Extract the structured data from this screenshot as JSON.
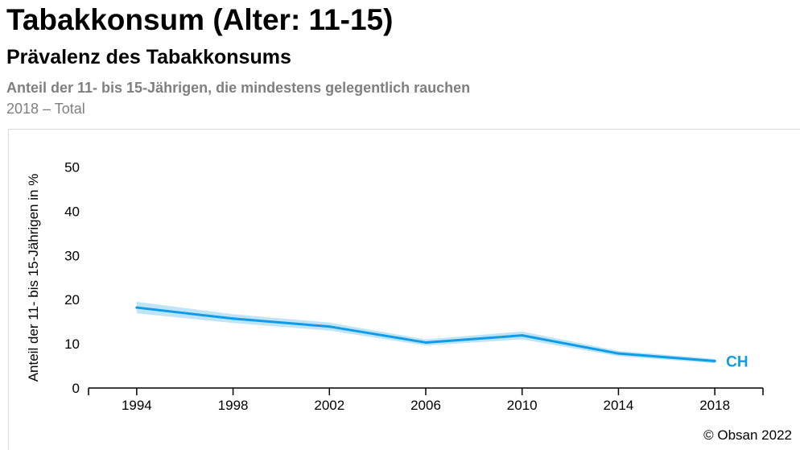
{
  "header": {
    "title": "Tabakkonsum (Alter: 11-15)",
    "subtitle": "Prävalenz des Tabakkonsums",
    "description": "Anteil der 11- bis 15-Jährigen, die mindestens gelegentlich rauchen",
    "meta": "2018 – Total"
  },
  "footer": {
    "copyright": "© Obsan 2022"
  },
  "colors": {
    "line": "#0f9ce6",
    "band": "#bfe4f7",
    "axis": "#000000"
  },
  "chart_data": {
    "type": "line",
    "title": "",
    "xlabel": "",
    "ylabel": "Anteil der 11- bis 15-Jährigen in %",
    "x": [
      1994,
      1998,
      2002,
      2006,
      2010,
      2014,
      2018
    ],
    "xlim": [
      1992,
      2020
    ],
    "ylim": [
      0,
      55
    ],
    "yticks": [
      0,
      10,
      20,
      30,
      40,
      50
    ],
    "xticks": [
      1994,
      1998,
      2002,
      2006,
      2010,
      2014,
      2018
    ],
    "grid": false,
    "series": [
      {
        "name": "CH",
        "values": [
          18.2,
          15.7,
          13.9,
          10.3,
          11.9,
          7.8,
          6.1
        ],
        "ci_lower": [
          16.9,
          14.7,
          13.0,
          9.6,
          11.0,
          7.2,
          5.6
        ],
        "ci_upper": [
          19.5,
          16.7,
          14.8,
          11.0,
          12.8,
          8.4,
          6.6
        ]
      }
    ]
  }
}
